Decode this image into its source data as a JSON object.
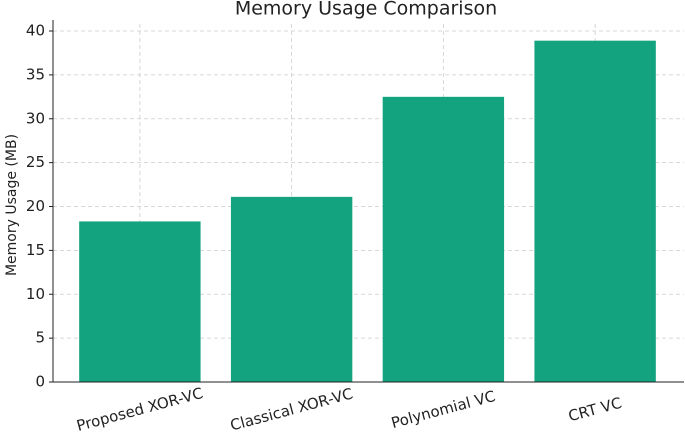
{
  "chart_data": {
    "type": "bar",
    "title": "Memory Usage Comparison",
    "y_label": "Memory Usage (MB)",
    "categories": [
      "Proposed XOR-VC",
      "Classical XOR-VC",
      "Polynomial VC",
      "CRT VC"
    ],
    "values": [
      18.3,
      21.1,
      32.5,
      38.9
    ],
    "color": "#13a37f",
    "ylim": [
      0,
      40.8
    ],
    "yticks": [
      0,
      5,
      10,
      15,
      20,
      25,
      30,
      35,
      40
    ],
    "grid": true
  }
}
